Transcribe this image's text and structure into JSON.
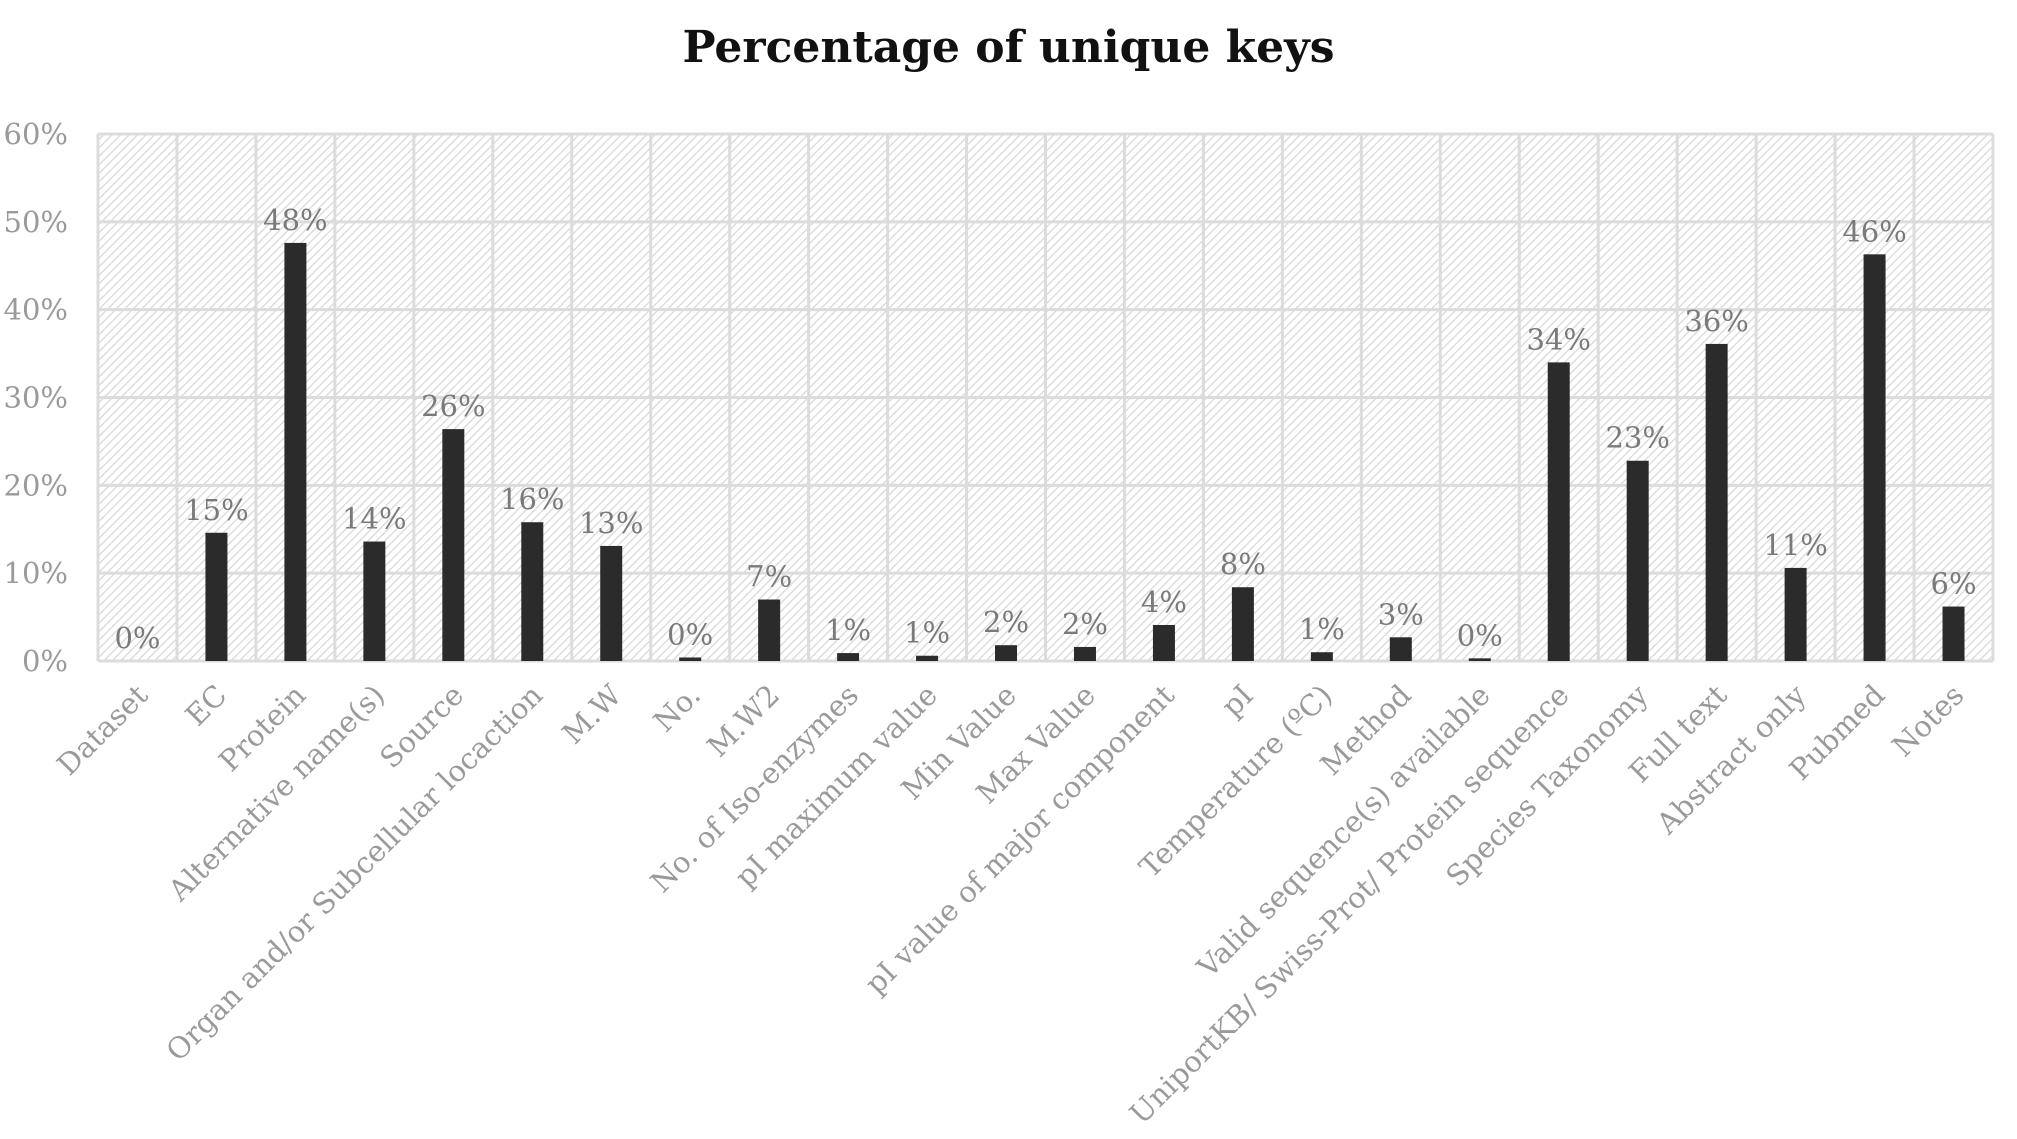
{
  "chart_data": {
    "type": "bar",
    "title": "Percentage of unique keys",
    "xlabel": "",
    "ylabel": "",
    "ylim": [
      0,
      60
    ],
    "yticks": [
      "0%",
      "10%",
      "20%",
      "30%",
      "40%",
      "50%",
      "60%"
    ],
    "ytick_values": [
      0,
      10,
      20,
      30,
      40,
      50,
      60
    ],
    "grid": true,
    "categories": [
      "Dataset",
      "EC",
      "Protein",
      "Alternative name(s)",
      "Source",
      "Organ and/or Subcellular locaction",
      "M.W",
      "No.",
      "M.W2",
      "No. of Iso-enzymes",
      "pI maximum value",
      "Min Value",
      "Max Value",
      "pI value of major component",
      "pI",
      "Temperature (ºC)",
      "Method",
      "Valid sequence(s) available",
      "UniportKB/ Swiss-Prot/ Protein sequence",
      "Species Taxonomy",
      "Full text",
      "Abstract only",
      "Pubmed",
      "Notes"
    ],
    "values": [
      0,
      14.6,
      47.6,
      13.6,
      26.4,
      15.8,
      13.1,
      0.4,
      7.0,
      0.9,
      0.6,
      1.8,
      1.6,
      4.1,
      8.4,
      1.0,
      2.7,
      0.3,
      34.0,
      22.8,
      36.1,
      10.6,
      46.3,
      6.2
    ],
    "data_labels": [
      "0%",
      "15%",
      "48%",
      "14%",
      "26%",
      "16%",
      "13%",
      "0%",
      "7%",
      "1%",
      "1%",
      "2%",
      "2%",
      "4%",
      "8%",
      "1%",
      "3%",
      "0%",
      "34%",
      "23%",
      "36%",
      "11%",
      "46%",
      "6%"
    ],
    "bar_color": "#2b2b2b"
  }
}
